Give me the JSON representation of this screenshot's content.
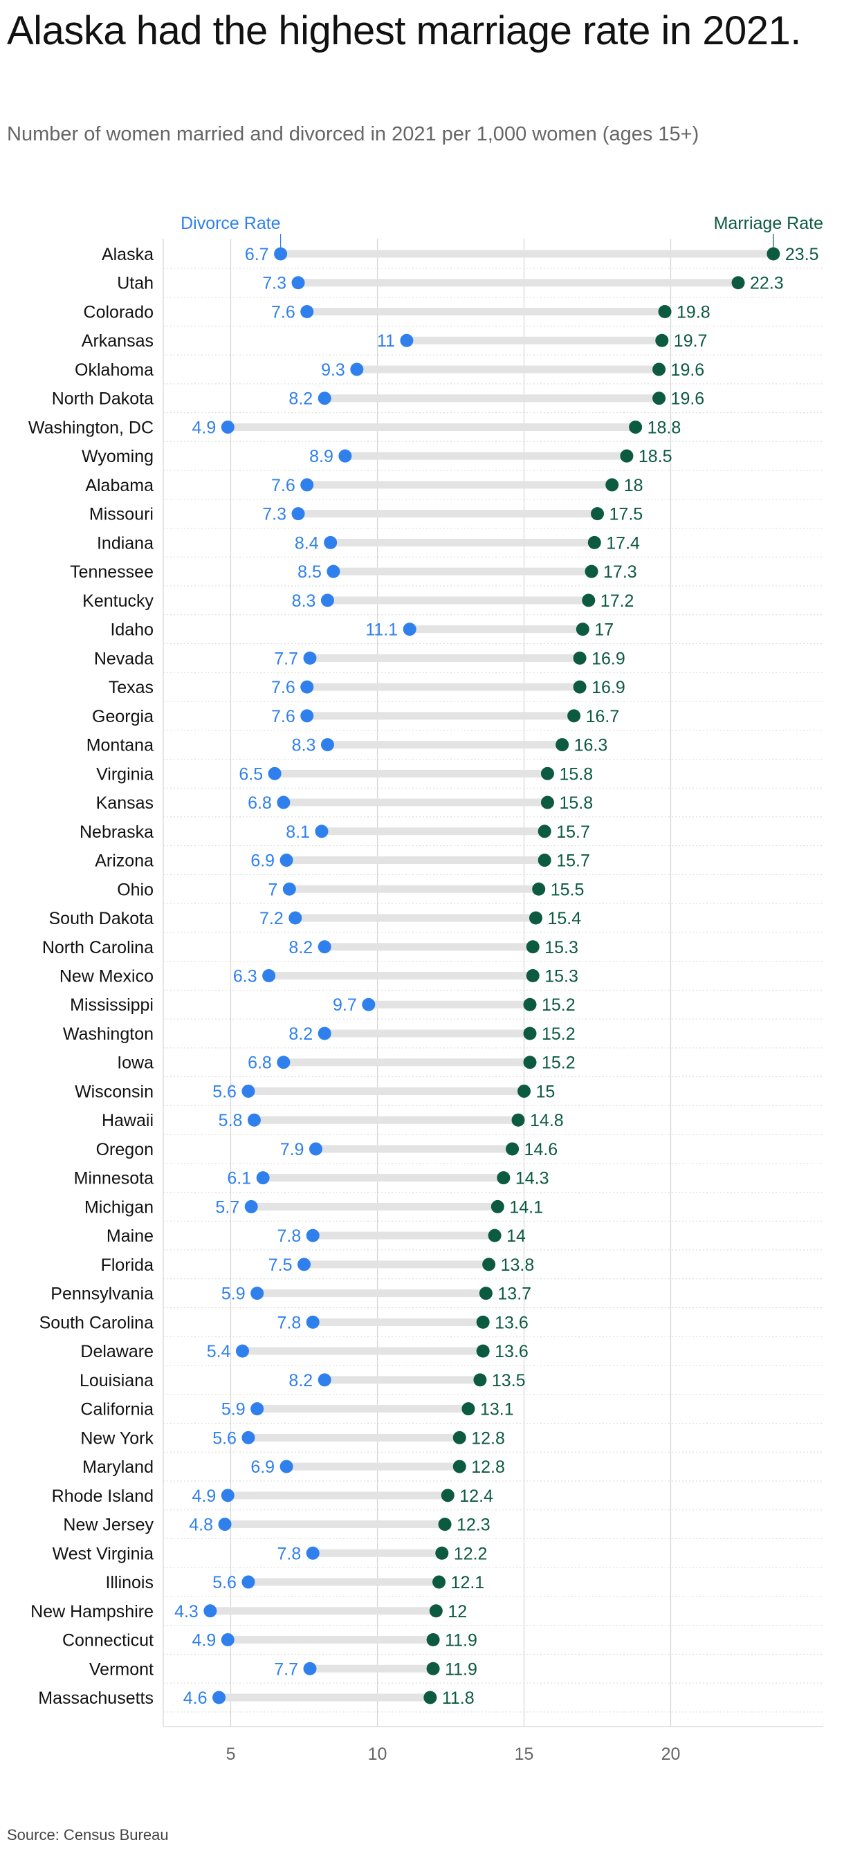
{
  "header": {
    "title": "Alaska had the highest marriage rate in 2021.",
    "subtitle": "Number of women married and divorced in 2021 per 1,000 women (ages 15+)"
  },
  "footer": {
    "source": "Source: Census Bureau"
  },
  "colors": {
    "divorce": "#2f80ed",
    "marriage": "#0c5a3f",
    "connector": "#e3e3e3",
    "grid": "#d5d5d5",
    "axis_text": "#666666"
  },
  "chart_data": {
    "type": "dumbbell",
    "series": [
      {
        "name": "Divorce Rate",
        "values": [
          6.7,
          7.3,
          7.6,
          11,
          9.3,
          8.2,
          4.9,
          8.9,
          7.6,
          7.3,
          8.4,
          8.5,
          8.3,
          11.1,
          7.7,
          7.6,
          7.6,
          8.3,
          6.5,
          6.8,
          8.1,
          6.9,
          7,
          7.2,
          8.2,
          6.3,
          9.7,
          8.2,
          6.8,
          5.6,
          5.8,
          7.9,
          6.1,
          5.7,
          7.8,
          7.5,
          5.9,
          7.8,
          5.4,
          8.2,
          5.9,
          5.6,
          6.9,
          4.9,
          4.8,
          7.8,
          5.6,
          4.3,
          4.9,
          7.7,
          4.6
        ]
      },
      {
        "name": "Marriage Rate",
        "values": [
          23.5,
          22.3,
          19.8,
          19.7,
          19.6,
          19.6,
          18.8,
          18.5,
          18,
          17.5,
          17.4,
          17.3,
          17.2,
          17,
          16.9,
          16.9,
          16.7,
          16.3,
          15.8,
          15.8,
          15.7,
          15.7,
          15.5,
          15.4,
          15.3,
          15.3,
          15.2,
          15.2,
          15.2,
          15,
          14.8,
          14.6,
          14.3,
          14.1,
          14,
          13.8,
          13.7,
          13.6,
          13.6,
          13.5,
          13.1,
          12.8,
          12.8,
          12.4,
          12.3,
          12.2,
          12.1,
          12,
          11.9,
          11.9,
          11.8
        ]
      }
    ],
    "categories": [
      "Alaska",
      "Utah",
      "Colorado",
      "Arkansas",
      "Oklahoma",
      "North Dakota",
      "Washington, DC",
      "Wyoming",
      "Alabama",
      "Missouri",
      "Indiana",
      "Tennessee",
      "Kentucky",
      "Idaho",
      "Nevada",
      "Texas",
      "Georgia",
      "Montana",
      "Virginia",
      "Kansas",
      "Nebraska",
      "Arizona",
      "Ohio",
      "South Dakota",
      "North Carolina",
      "New Mexico",
      "Mississippi",
      "Washington",
      "Iowa",
      "Wisconsin",
      "Hawaii",
      "Oregon",
      "Minnesota",
      "Michigan",
      "Maine",
      "Florida",
      "Pennsylvania",
      "South Carolina",
      "Delaware",
      "Louisiana",
      "California",
      "New York",
      "Maryland",
      "Rhode Island",
      "New Jersey",
      "West Virginia",
      "Illinois",
      "New Hampshire",
      "Connecticut",
      "Vermont",
      "Massachusetts"
    ],
    "xticks": [
      5,
      10,
      15,
      20
    ],
    "xlim": [
      2.7,
      25.2
    ],
    "grid": true,
    "legend": "top"
  }
}
